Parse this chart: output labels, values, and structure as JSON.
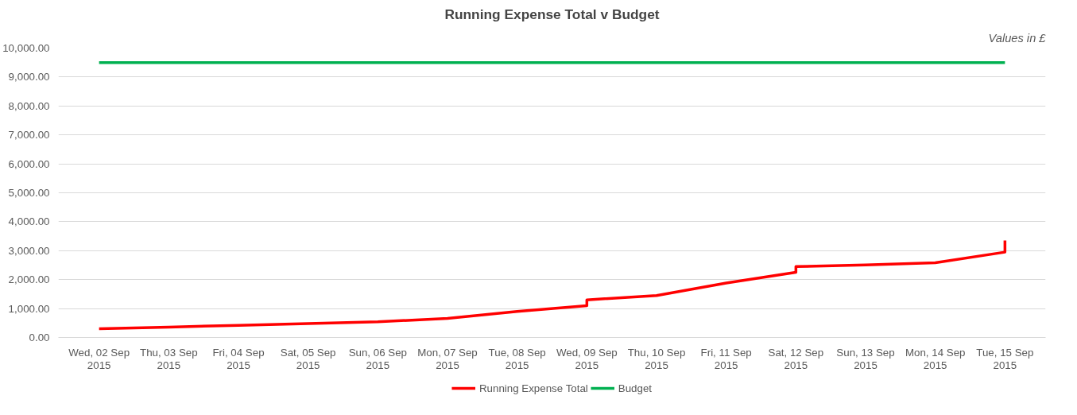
{
  "chart_data": {
    "type": "line",
    "title": "Running Expense Total v Budget",
    "annotations": [
      "Values in £"
    ],
    "xlim": [
      "2015-09-01T10:00",
      "2015-09-15T14:00"
    ],
    "xticks": [
      {
        "value": "2015-09-02",
        "label": "Wed, 02 Sep\n2015"
      },
      {
        "value": "2015-09-03",
        "label": "Thu, 03 Sep\n2015"
      },
      {
        "value": "2015-09-04",
        "label": "Fri, 04 Sep\n2015"
      },
      {
        "value": "2015-09-05",
        "label": "Sat, 05 Sep\n2015"
      },
      {
        "value": "2015-09-06",
        "label": "Sun, 06 Sep\n2015"
      },
      {
        "value": "2015-09-07",
        "label": "Mon, 07 Sep\n2015"
      },
      {
        "value": "2015-09-08",
        "label": "Tue, 08 Sep\n2015"
      },
      {
        "value": "2015-09-09",
        "label": "Wed, 09 Sep\n2015"
      },
      {
        "value": "2015-09-10",
        "label": "Thu, 10 Sep\n2015"
      },
      {
        "value": "2015-09-11",
        "label": "Fri, 11 Sep\n2015"
      },
      {
        "value": "2015-09-12",
        "label": "Sat, 12 Sep\n2015"
      },
      {
        "value": "2015-09-13",
        "label": "Sun, 13 Sep\n2015"
      },
      {
        "value": "2015-09-14",
        "label": "Mon, 14 Sep\n2015"
      },
      {
        "value": "2015-09-15",
        "label": "Tue, 15 Sep\n2015"
      }
    ],
    "ylim": [
      0,
      10000
    ],
    "yticks": [
      {
        "value": 0,
        "label": "0.00"
      },
      {
        "value": 1000,
        "label": "1,000.00"
      },
      {
        "value": 2000,
        "label": "2,000.00"
      },
      {
        "value": 3000,
        "label": "3,000.00"
      },
      {
        "value": 4000,
        "label": "4,000.00"
      },
      {
        "value": 5000,
        "label": "5,000.00"
      },
      {
        "value": 6000,
        "label": "6,000.00"
      },
      {
        "value": 7000,
        "label": "7,000.00"
      },
      {
        "value": 8000,
        "label": "8,000.00"
      },
      {
        "value": 9000,
        "label": "9,000.00"
      },
      {
        "value": 10000,
        "label": "10,000.00"
      }
    ],
    "grid": "y",
    "legend": "bottom",
    "series": [
      {
        "name": "Running Expense Total",
        "color": "#ff0000",
        "x": [
          "2015-09-02",
          "2015-09-03",
          "2015-09-04",
          "2015-09-05",
          "2015-09-06",
          "2015-09-07",
          "2015-09-08",
          "2015-09-09",
          "2015-09-09",
          "2015-09-10",
          "2015-09-11",
          "2015-09-12",
          "2015-09-12",
          "2015-09-13",
          "2015-09-14",
          "2015-09-15",
          "2015-09-15"
        ],
        "values": [
          300,
          360,
          420,
          480,
          540,
          660,
          900,
          1100,
          1300,
          1450,
          1880,
          2250,
          2450,
          2510,
          2580,
          2950,
          3350
        ]
      },
      {
        "name": "Budget",
        "color": "#00b050",
        "x": [
          "2015-09-02",
          "2015-09-15"
        ],
        "values": [
          9500,
          9500
        ]
      }
    ]
  }
}
